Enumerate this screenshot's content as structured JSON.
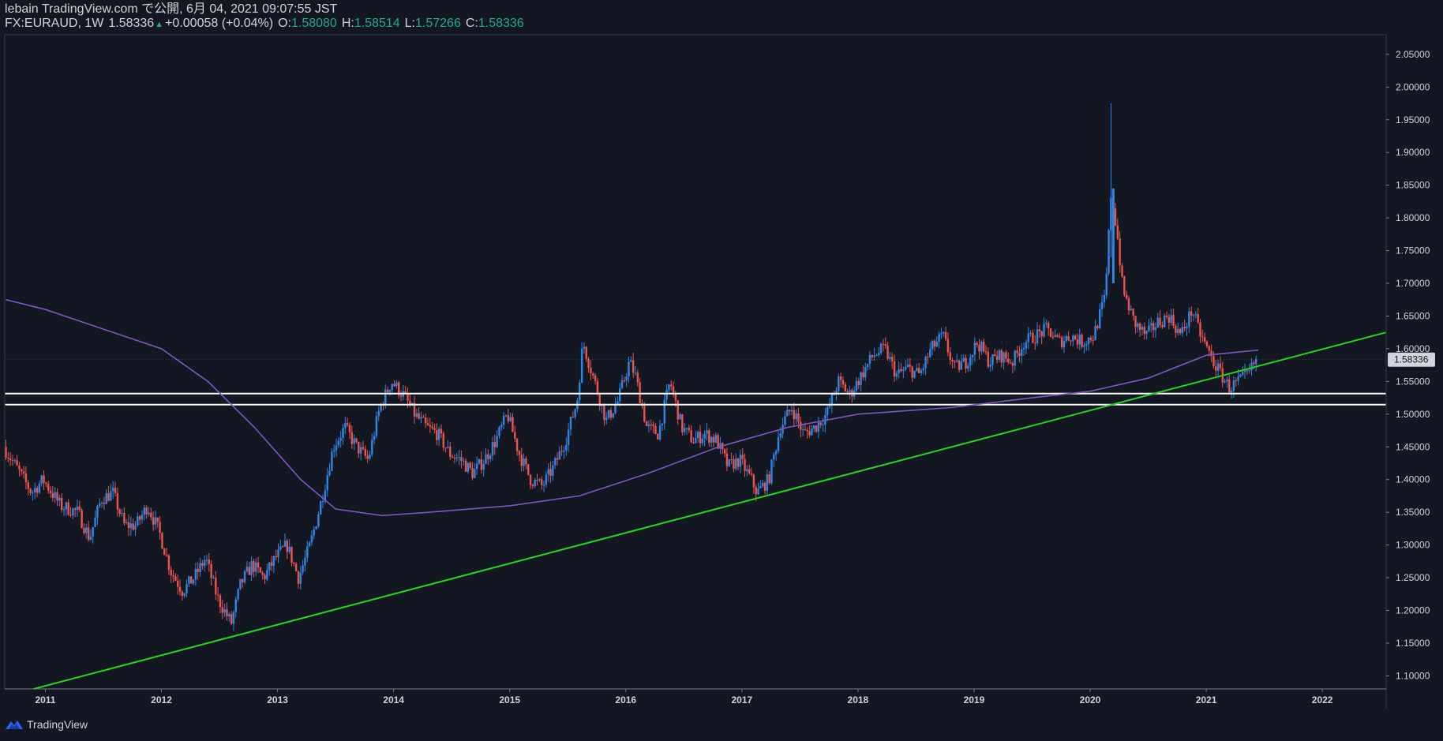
{
  "header": {
    "publisher": "lebain TradingView.com で公開, 6月 04, 2021 09:07:55 JST",
    "symbol": "FX:EURAUD, 1W",
    "last": "1.58336",
    "change": "+0.00058 (+0.04%)",
    "o_label": "O:",
    "o_value": "1.58080",
    "h_label": "H:",
    "h_value": "1.58514",
    "l_label": "L:",
    "l_value": "1.57266",
    "c_label": "C:",
    "c_value": "1.58336"
  },
  "footer": {
    "brand": "TradingView"
  },
  "colors": {
    "background": "#131722",
    "up_candle": "#2f86e3",
    "down_candle": "#ef5350",
    "ma_line": "#7e57c2",
    "trendline": "#1fd81f",
    "support_lines": "#ffffff",
    "axis_text": "#d1d4dc",
    "axis_line": "#787b86",
    "price_badge": "#d1d4dc"
  },
  "chart_data": {
    "type": "candlestick",
    "symbol": "FX:EURAUD",
    "interval": "1W",
    "ylim": [
      1.08,
      2.08
    ],
    "xlim": [
      2010.65,
      2022.55
    ],
    "y_ticks": [
      "1.10000",
      "1.15000",
      "1.20000",
      "1.25000",
      "1.30000",
      "1.35000",
      "1.40000",
      "1.45000",
      "1.50000",
      "1.55000",
      "1.60000",
      "1.65000",
      "1.70000",
      "1.75000",
      "1.80000",
      "1.85000",
      "1.90000",
      "1.95000",
      "2.00000",
      "2.05000"
    ],
    "x_ticks": [
      "2011",
      "2012",
      "2013",
      "2014",
      "2015",
      "2016",
      "2017",
      "2018",
      "2019",
      "2020",
      "2021",
      "2022"
    ],
    "current_price_label": "1.58336",
    "price_path": [
      [
        2010.66,
        1.45
      ],
      [
        2010.8,
        1.41
      ],
      [
        2010.9,
        1.38
      ],
      [
        2011.0,
        1.4
      ],
      [
        2011.15,
        1.36
      ],
      [
        2011.3,
        1.35
      ],
      [
        2011.4,
        1.31
      ],
      [
        2011.5,
        1.37
      ],
      [
        2011.6,
        1.38
      ],
      [
        2011.7,
        1.33
      ],
      [
        2011.8,
        1.33
      ],
      [
        2011.9,
        1.36
      ],
      [
        2012.0,
        1.32
      ],
      [
        2012.1,
        1.26
      ],
      [
        2012.2,
        1.23
      ],
      [
        2012.3,
        1.25
      ],
      [
        2012.4,
        1.28
      ],
      [
        2012.5,
        1.22
      ],
      [
        2012.62,
        1.18
      ],
      [
        2012.7,
        1.24
      ],
      [
        2012.8,
        1.27
      ],
      [
        2012.9,
        1.25
      ],
      [
        2013.0,
        1.28
      ],
      [
        2013.1,
        1.3
      ],
      [
        2013.2,
        1.25
      ],
      [
        2013.3,
        1.3
      ],
      [
        2013.4,
        1.37
      ],
      [
        2013.5,
        1.45
      ],
      [
        2013.6,
        1.48
      ],
      [
        2013.7,
        1.45
      ],
      [
        2013.8,
        1.43
      ],
      [
        2013.9,
        1.51
      ],
      [
        2014.0,
        1.55
      ],
      [
        2014.1,
        1.53
      ],
      [
        2014.2,
        1.5
      ],
      [
        2014.3,
        1.48
      ],
      [
        2014.4,
        1.47
      ],
      [
        2014.5,
        1.44
      ],
      [
        2014.6,
        1.43
      ],
      [
        2014.7,
        1.41
      ],
      [
        2014.8,
        1.43
      ],
      [
        2014.9,
        1.46
      ],
      [
        2015.0,
        1.5
      ],
      [
        2015.1,
        1.44
      ],
      [
        2015.2,
        1.4
      ],
      [
        2015.3,
        1.39
      ],
      [
        2015.4,
        1.42
      ],
      [
        2015.5,
        1.46
      ],
      [
        2015.6,
        1.52
      ],
      [
        2015.65,
        1.61
      ],
      [
        2015.75,
        1.55
      ],
      [
        2015.85,
        1.49
      ],
      [
        2015.95,
        1.52
      ],
      [
        2016.05,
        1.58
      ],
      [
        2016.1,
        1.56
      ],
      [
        2016.2,
        1.48
      ],
      [
        2016.3,
        1.47
      ],
      [
        2016.4,
        1.55
      ],
      [
        2016.5,
        1.48
      ],
      [
        2016.6,
        1.46
      ],
      [
        2016.7,
        1.47
      ],
      [
        2016.8,
        1.46
      ],
      [
        2016.9,
        1.42
      ],
      [
        2017.0,
        1.43
      ],
      [
        2017.1,
        1.4
      ],
      [
        2017.15,
        1.38
      ],
      [
        2017.25,
        1.4
      ],
      [
        2017.35,
        1.48
      ],
      [
        2017.45,
        1.51
      ],
      [
        2017.55,
        1.47
      ],
      [
        2017.65,
        1.48
      ],
      [
        2017.75,
        1.5
      ],
      [
        2017.85,
        1.55
      ],
      [
        2017.95,
        1.53
      ],
      [
        2018.05,
        1.56
      ],
      [
        2018.15,
        1.59
      ],
      [
        2018.25,
        1.6
      ],
      [
        2018.35,
        1.56
      ],
      [
        2018.45,
        1.57
      ],
      [
        2018.55,
        1.56
      ],
      [
        2018.65,
        1.6
      ],
      [
        2018.75,
        1.62
      ],
      [
        2018.85,
        1.57
      ],
      [
        2018.95,
        1.58
      ],
      [
        2019.05,
        1.61
      ],
      [
        2019.15,
        1.58
      ],
      [
        2019.25,
        1.59
      ],
      [
        2019.35,
        1.58
      ],
      [
        2019.45,
        1.61
      ],
      [
        2019.55,
        1.62
      ],
      [
        2019.65,
        1.63
      ],
      [
        2019.75,
        1.61
      ],
      [
        2019.85,
        1.62
      ],
      [
        2019.95,
        1.61
      ],
      [
        2020.05,
        1.62
      ],
      [
        2020.15,
        1.68
      ],
      [
        2020.2,
        1.84
      ],
      [
        2020.25,
        1.78
      ],
      [
        2020.3,
        1.69
      ],
      [
        2020.4,
        1.64
      ],
      [
        2020.5,
        1.62
      ],
      [
        2020.6,
        1.64
      ],
      [
        2020.7,
        1.65
      ],
      [
        2020.8,
        1.62
      ],
      [
        2020.9,
        1.66
      ],
      [
        2020.95,
        1.63
      ],
      [
        2021.0,
        1.61
      ],
      [
        2021.08,
        1.58
      ],
      [
        2021.15,
        1.56
      ],
      [
        2021.22,
        1.54
      ],
      [
        2021.3,
        1.55
      ],
      [
        2021.38,
        1.56
      ],
      [
        2021.44,
        1.58
      ]
    ],
    "moving_average": [
      [
        2010.66,
        1.675
      ],
      [
        2011.0,
        1.66
      ],
      [
        2011.5,
        1.63
      ],
      [
        2012.0,
        1.6
      ],
      [
        2012.4,
        1.55
      ],
      [
        2012.8,
        1.48
      ],
      [
        2013.2,
        1.4
      ],
      [
        2013.5,
        1.355
      ],
      [
        2013.9,
        1.345
      ],
      [
        2014.3,
        1.35
      ],
      [
        2015.0,
        1.36
      ],
      [
        2015.6,
        1.375
      ],
      [
        2016.2,
        1.41
      ],
      [
        2016.8,
        1.45
      ],
      [
        2017.4,
        1.48
      ],
      [
        2018.0,
        1.5
      ],
      [
        2018.8,
        1.51
      ],
      [
        2019.5,
        1.525
      ],
      [
        2020.0,
        1.535
      ],
      [
        2020.5,
        1.555
      ],
      [
        2021.0,
        1.59
      ],
      [
        2021.45,
        1.598
      ]
    ],
    "trendline": {
      "from": [
        2010.9,
        1.08
      ],
      "to": [
        2022.55,
        1.625
      ]
    },
    "horizontal_levels": [
      1.5315,
      1.5145
    ]
  }
}
